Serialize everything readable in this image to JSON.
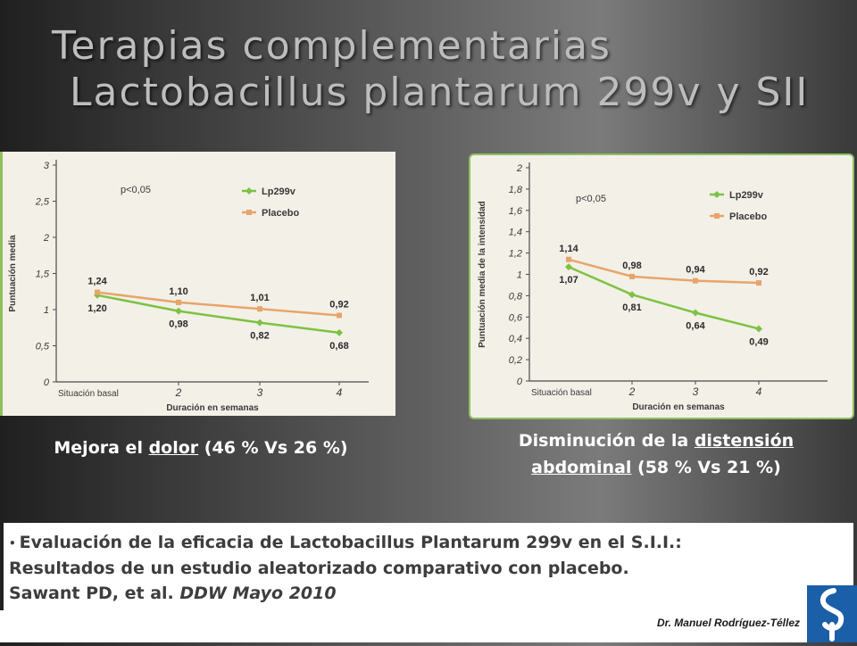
{
  "slide": {
    "title_line1": "Terapias complementarias",
    "title_line2": "Lactobacillus plantarum 299v y SII",
    "caption_left": {
      "pre": "Mejora el ",
      "underlined": "dolor",
      "post": " (46 % Vs 26 %)"
    },
    "caption_right": {
      "pre": "Disminución de la ",
      "underlined1": "distensión",
      "underlined2": "abdominal",
      "post": " (58 % Vs 21 %)"
    },
    "reference": {
      "bullet": "•",
      "line1": "Evaluación de la eficacia de Lactobacillus Plantarum 299v en el S.I.I.:",
      "line2": "Resultados de un estudio aleatorizado comparativo con placebo.",
      "line3_pre": "Sawant PD, et al. ",
      "line3_italic": "DDW Mayo 2010"
    },
    "author": "Dr. Manuel Rodríguez-Téllez",
    "colors": {
      "lp299v": "#7dc242",
      "placebo": "#e8a46a",
      "logo": "#1a5fa8",
      "frame": "#8fc060"
    }
  },
  "chart_data": [
    {
      "type": "line",
      "ylabel": "Puntuación media",
      "xlabel": "Duración en semanas",
      "annotation": "p<0,05",
      "categories": [
        "Situación basal",
        "2",
        "3",
        "4"
      ],
      "ylim": [
        0,
        3
      ],
      "yticks": [
        0,
        0.5,
        1,
        1.5,
        2,
        2.5,
        3
      ],
      "ytick_labels": [
        "0",
        "0,5",
        "1",
        "1,5",
        "2",
        "2,5",
        "3"
      ],
      "series": [
        {
          "name": "Lp299v",
          "values": [
            1.2,
            0.98,
            0.82,
            0.68
          ],
          "labels": [
            "1,20",
            "0,98",
            "0,82",
            "0,68"
          ],
          "label_pos": "below"
        },
        {
          "name": "Placebo",
          "values": [
            1.24,
            1.1,
            1.01,
            0.92
          ],
          "labels": [
            "1,24",
            "1,10",
            "1,01",
            "0,92"
          ],
          "label_pos": "above"
        }
      ]
    },
    {
      "type": "line",
      "ylabel": "Puntuación media de la intensidad",
      "xlabel": "Duración en semanas",
      "annotation": "p<0,05",
      "categories": [
        "Situación basal",
        "2",
        "3",
        "4"
      ],
      "ylim": [
        0,
        2
      ],
      "yticks": [
        0,
        0.2,
        0.4,
        0.6,
        0.8,
        1,
        1.2,
        1.4,
        1.6,
        1.8,
        2
      ],
      "ytick_labels": [
        "0",
        "0,2",
        "0,4",
        "0,6",
        "0,8",
        "1",
        "1,2",
        "1,4",
        "1,6",
        "1,8",
        "2"
      ],
      "series": [
        {
          "name": "Lp299v",
          "values": [
            1.07,
            0.81,
            0.64,
            0.49
          ],
          "labels": [
            "1,07",
            "0,81",
            "0,64",
            "0,49"
          ],
          "label_pos": "below"
        },
        {
          "name": "Placebo",
          "values": [
            1.14,
            0.98,
            0.94,
            0.92
          ],
          "labels": [
            "1,14",
            "0,98",
            "0,94",
            "0,92"
          ],
          "label_pos": "above"
        }
      ]
    }
  ]
}
